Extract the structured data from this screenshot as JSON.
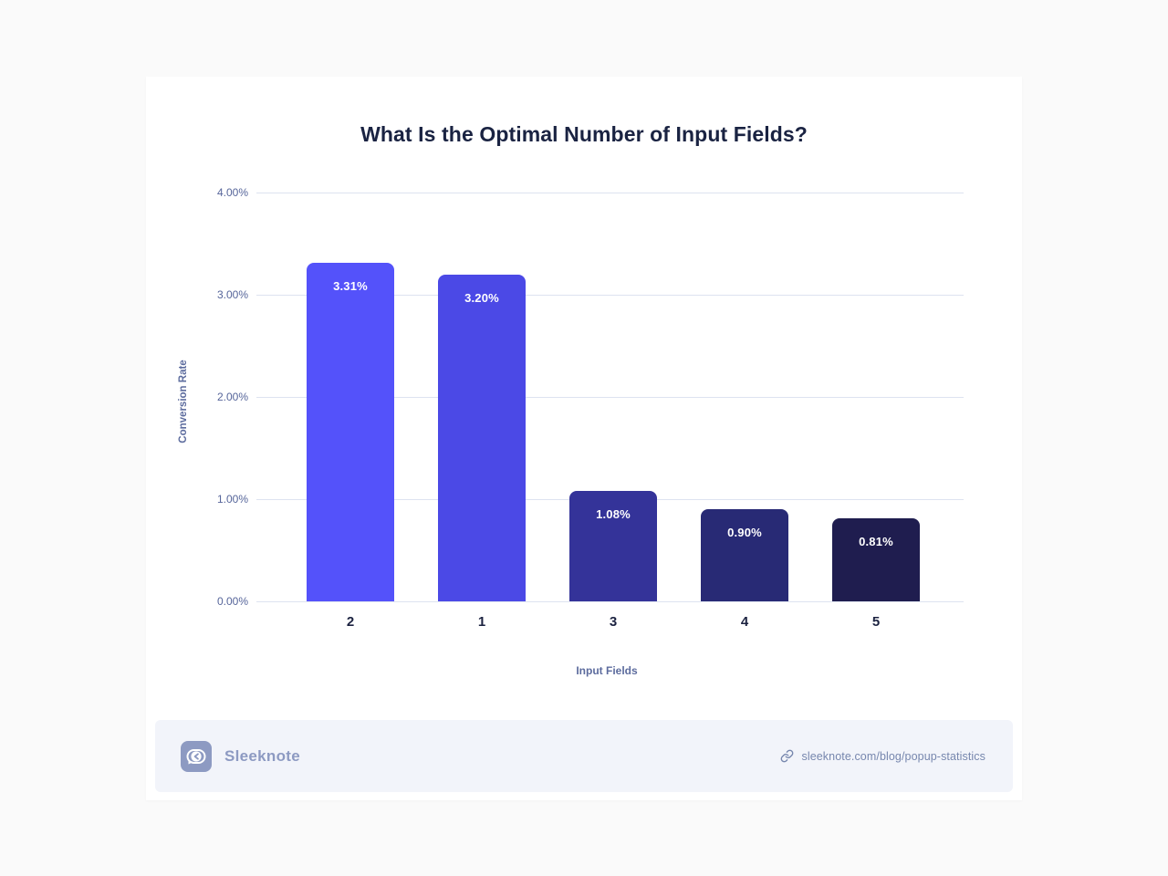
{
  "chart_data": {
    "type": "bar",
    "title": "What Is the Optimal Number of Input Fields?",
    "categories": [
      "2",
      "1",
      "3",
      "4",
      "5"
    ],
    "values": [
      3.31,
      3.2,
      1.08,
      0.9,
      0.81
    ],
    "value_labels": [
      "3.31%",
      "3.20%",
      "1.08%",
      "0.90%",
      "0.81%"
    ],
    "bar_colors": [
      "#5452fa",
      "#4b49e6",
      "#343399",
      "#282a75",
      "#1f1d4f"
    ],
    "xlabel": "Input Fields",
    "ylabel": "Conversion Rate",
    "ylim": [
      0,
      4
    ],
    "yticks": [
      "0.00%",
      "1.00%",
      "2.00%",
      "3.00%",
      "4.00%"
    ],
    "grid": true,
    "gridline_color": "#dde3f0",
    "legend": "none"
  },
  "footer": {
    "brand": "Sleeknote",
    "link_text": "sleeknote.com/blog/popup-statistics",
    "icons": {
      "brand_logo": "sleeknote-chat-bubble-logo",
      "link": "link-icon"
    }
  },
  "colors": {
    "page_background": "#fafafa",
    "card_background": "#ffffff",
    "title_text": "#1a2342",
    "axis_text": "#5d6c9e",
    "tick_text": "#56659a",
    "footer_background": "#f2f4fa",
    "footer_brand": "#8d9ac2",
    "footer_link": "#7787ae"
  }
}
